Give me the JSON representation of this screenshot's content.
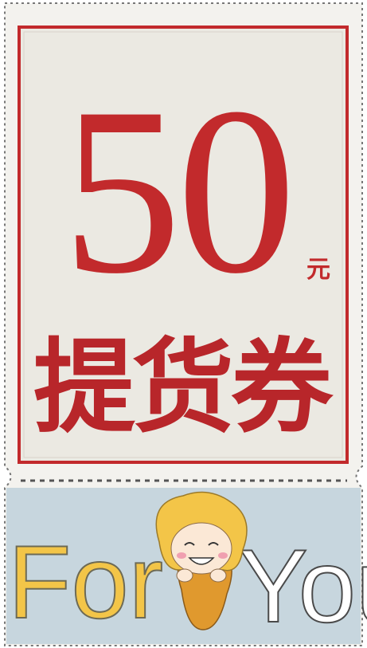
{
  "voucher": {
    "amount": 50,
    "unit": "元",
    "title": "提货券",
    "footer": {
      "left": "For",
      "right": "You"
    }
  }
}
